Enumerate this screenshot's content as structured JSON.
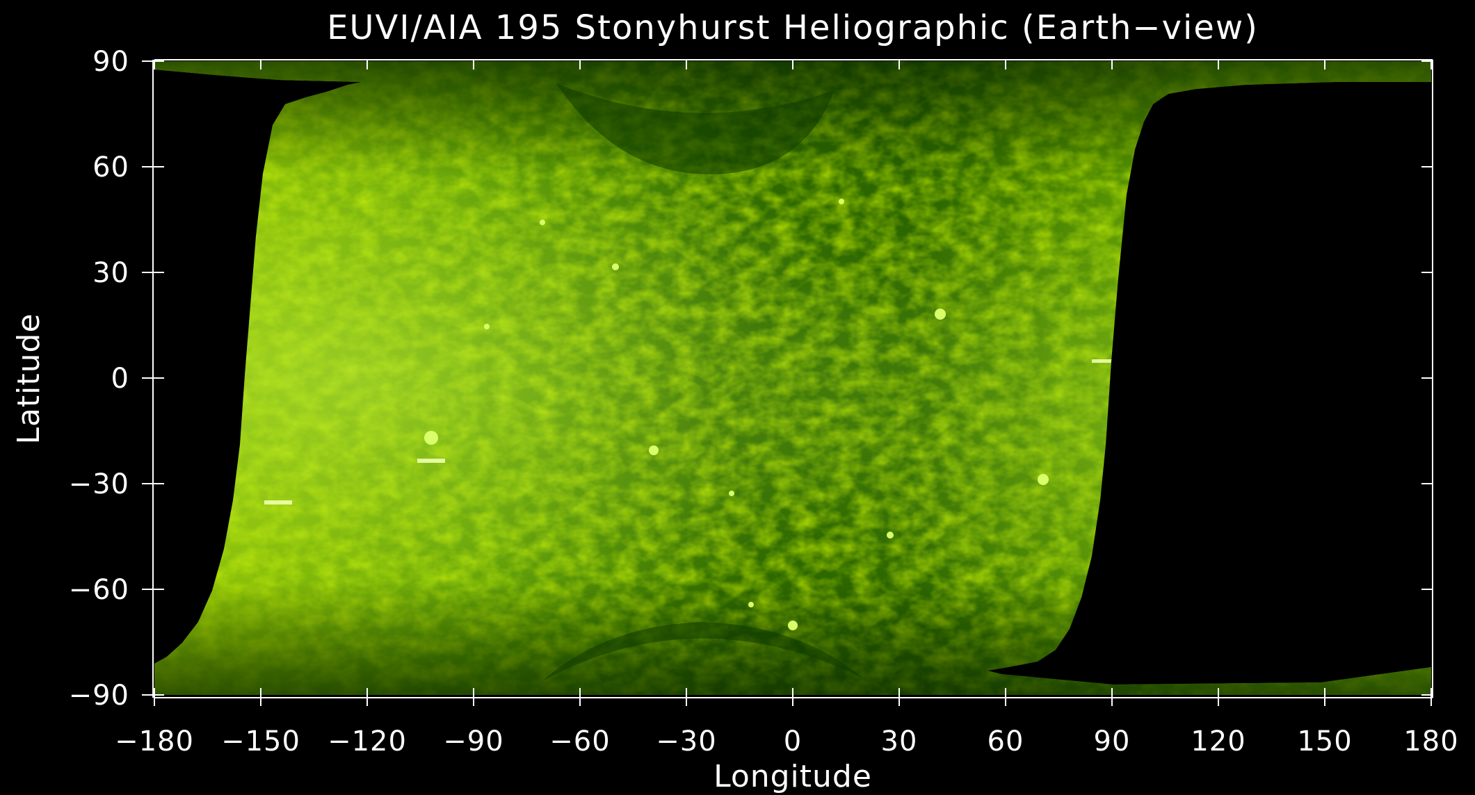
{
  "figure": {
    "title": "EUVI/AIA 195 Stonyhurst Heliographic (Earth−view)",
    "x_label": "Longitude",
    "y_label": "Latitude",
    "x_range": [
      -180,
      180
    ],
    "y_range": [
      -90,
      90
    ],
    "x_ticks": [
      "−180",
      "−150",
      "−120",
      "−90",
      "−60",
      "−30",
      "0",
      "30",
      "60",
      "90",
      "120",
      "150",
      "180"
    ],
    "y_ticks": [
      "90",
      "60",
      "30",
      "0",
      "−30",
      "−60",
      "−90"
    ],
    "x_tick_values": [
      -180,
      -150,
      -120,
      -90,
      -60,
      -30,
      0,
      30,
      60,
      90,
      120,
      150,
      180
    ],
    "y_tick_values": [
      90,
      60,
      30,
      0,
      -30,
      -60,
      -90
    ],
    "image_content": "Stonyhurst heliographic map of the solar corona in 195 Å, green colormap, with black no-data region on the far side (roughly 90°–180° longitude)",
    "no_data_longitude_range": [
      90,
      180
    ]
  },
  "colors": {
    "background": "#000000",
    "axes": "#ffffff",
    "text": "#ffffff",
    "sun_dark": "#1a4d00",
    "sun_mid": "#3d7a00",
    "sun_bright": "#8fc400",
    "sun_highlight": "#d8ff6a",
    "no_data": "#000000"
  }
}
